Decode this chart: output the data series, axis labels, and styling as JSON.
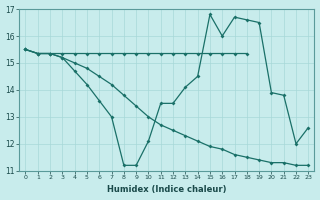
{
  "xlabel": "Humidex (Indice chaleur)",
  "background_color": "#c8ecec",
  "grid_color": "#a8d8d8",
  "line_color": "#1a7068",
  "xlim": [
    -0.5,
    23.5
  ],
  "ylim": [
    11,
    17
  ],
  "yticks": [
    11,
    12,
    13,
    14,
    15,
    16,
    17
  ],
  "xticks": [
    0,
    1,
    2,
    3,
    4,
    5,
    6,
    7,
    8,
    9,
    10,
    11,
    12,
    13,
    14,
    15,
    16,
    17,
    18,
    19,
    20,
    21,
    22,
    23
  ],
  "line1_x": [
    0,
    1,
    2,
    3,
    4,
    5,
    6,
    7,
    8,
    9,
    10,
    11,
    12,
    13,
    14,
    15,
    16,
    17,
    18
  ],
  "line1_y": [
    15.5,
    15.35,
    15.35,
    15.35,
    15.35,
    15.35,
    15.35,
    15.35,
    15.35,
    15.35,
    15.35,
    15.35,
    15.35,
    15.35,
    15.35,
    15.35,
    15.35,
    15.35,
    15.35
  ],
  "line2_x": [
    0,
    1,
    2,
    3,
    4,
    5,
    6,
    7,
    8,
    9,
    10,
    11,
    12,
    13,
    14,
    15,
    16,
    17,
    18,
    19,
    20,
    21,
    22,
    23
  ],
  "line2_y": [
    15.5,
    15.35,
    15.35,
    15.2,
    15.0,
    14.8,
    14.5,
    14.2,
    13.8,
    13.4,
    13.0,
    12.7,
    12.5,
    12.3,
    12.1,
    11.9,
    11.8,
    11.6,
    11.5,
    11.4,
    11.3,
    11.3,
    11.2,
    11.2
  ],
  "line3_x": [
    0,
    1,
    2,
    3,
    4,
    5,
    6,
    7,
    8,
    9,
    10,
    11,
    12,
    13,
    14,
    15,
    16,
    17,
    18,
    19,
    20,
    21,
    22,
    23
  ],
  "line3_y": [
    15.5,
    15.35,
    15.35,
    15.2,
    14.7,
    14.2,
    13.6,
    13.0,
    11.2,
    11.2,
    12.1,
    13.5,
    13.5,
    14.1,
    14.5,
    16.8,
    16.0,
    16.7,
    16.6,
    16.5,
    13.9,
    13.8,
    12.0,
    12.6
  ]
}
